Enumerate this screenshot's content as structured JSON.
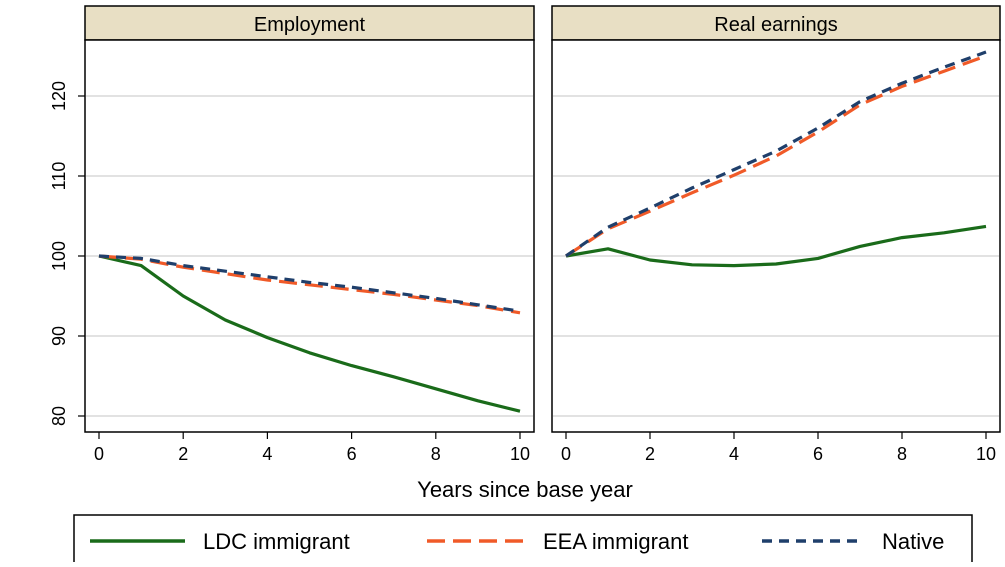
{
  "chart_data": {
    "type": "line",
    "xlabel": "Years since base year",
    "ylabel": "",
    "x_ticks": [
      "0",
      "2",
      "4",
      "6",
      "8",
      "10"
    ],
    "y_ticks": [
      "80",
      "90",
      "100",
      "110",
      "120"
    ],
    "xlim": [
      0,
      10
    ],
    "ylim": [
      78,
      127
    ],
    "grid": true,
    "legend_position": "bottom",
    "legend": {
      "ldc": "LDC immigrant",
      "eea": "EEA immigrant",
      "native": "Native"
    },
    "colors": {
      "ldc": "#1a6b1a",
      "eea": "#f05a28",
      "native": "#1f3f6b",
      "header_fill": "#e8dfc4"
    },
    "panels": [
      {
        "title": "Employment",
        "x": [
          0,
          1,
          2,
          3,
          4,
          5,
          6,
          7,
          8,
          9,
          10
        ],
        "series": [
          {
            "key": "ldc",
            "name": "LDC immigrant",
            "values": [
              100,
              98.8,
              95.0,
              92.0,
              89.8,
              87.9,
              86.3,
              84.9,
              83.4,
              81.9,
              80.6
            ]
          },
          {
            "key": "eea",
            "name": "EEA immigrant",
            "values": [
              100,
              99.6,
              98.6,
              97.8,
              97.0,
              96.4,
              95.8,
              95.2,
              94.5,
              93.8,
              92.9
            ]
          },
          {
            "key": "native",
            "name": "Native",
            "values": [
              100,
              99.7,
              98.8,
              98.1,
              97.4,
              96.7,
              96.1,
              95.4,
              94.7,
              93.9,
              93.1
            ]
          }
        ]
      },
      {
        "title": "Real earnings",
        "x": [
          0,
          1,
          2,
          3,
          4,
          5,
          6,
          7,
          8,
          9,
          10
        ],
        "series": [
          {
            "key": "ldc",
            "name": "LDC immigrant",
            "values": [
              100,
              100.9,
              99.5,
              98.9,
              98.8,
              99.0,
              99.7,
              101.2,
              102.3,
              102.9,
              103.7
            ]
          },
          {
            "key": "eea",
            "name": "EEA immigrant",
            "values": [
              100,
              103.4,
              105.6,
              107.9,
              110.1,
              112.5,
              115.5,
              118.9,
              121.2,
              123.1,
              125.0
            ]
          },
          {
            "key": "native",
            "name": "Native",
            "values": [
              100,
              103.6,
              106.0,
              108.5,
              110.8,
              113.1,
              116.0,
              119.3,
              121.6,
              123.6,
              125.5
            ]
          }
        ]
      }
    ]
  }
}
